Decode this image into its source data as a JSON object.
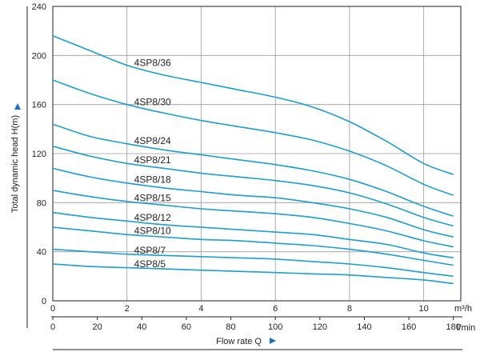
{
  "chart_data": {
    "type": "line",
    "ylabel": "Total dynamic head H(m)",
    "xlabel": "Flow rate  Q",
    "x_unit_top": "m³/h",
    "x_unit_bottom": "l/min",
    "xlim": [
      0,
      11
    ],
    "ylim": [
      0,
      240
    ],
    "x_ticks_top": [
      "0",
      "2",
      "4",
      "6",
      "8",
      "10"
    ],
    "x_ticks_bottom": [
      "0",
      "20",
      "40",
      "60",
      "80",
      "100",
      "120",
      "140",
      "160",
      "180"
    ],
    "y_ticks": [
      "0",
      "40",
      "80",
      "120",
      "160",
      "200",
      "240"
    ],
    "grid": true,
    "curve_color": "#1a9fd0",
    "arrow_color": "#1c6fc2",
    "series": [
      {
        "name": "4SP8/36",
        "x": [
          0,
          1,
          2,
          3,
          4,
          5,
          6,
          7,
          8,
          9,
          10,
          10.8
        ],
        "y": [
          216,
          204,
          192,
          184,
          178,
          172,
          166,
          158,
          146,
          130,
          112,
          103
        ]
      },
      {
        "name": "4SP8/30",
        "x": [
          0,
          1,
          2,
          3,
          4,
          5,
          6,
          7,
          8,
          9,
          10,
          10.8
        ],
        "y": [
          180,
          169,
          160,
          153,
          147,
          142,
          137,
          131,
          122,
          110,
          95,
          86
        ]
      },
      {
        "name": "4SP8/24",
        "x": [
          0,
          1,
          2,
          3,
          4,
          5,
          6,
          7,
          8,
          9,
          10,
          10.8
        ],
        "y": [
          144,
          134,
          128,
          123,
          119,
          115,
          111,
          106,
          99,
          89,
          77,
          69
        ]
      },
      {
        "name": "4SP8/21",
        "x": [
          0,
          1,
          2,
          3,
          4,
          5,
          6,
          7,
          8,
          9,
          10,
          10.8
        ],
        "y": [
          126,
          118,
          112,
          108,
          104,
          101,
          98,
          94,
          88,
          79,
          68,
          61
        ]
      },
      {
        "name": "4SP8/18",
        "x": [
          0,
          1,
          2,
          3,
          4,
          5,
          6,
          7,
          8,
          9,
          10,
          10.8
        ],
        "y": [
          108,
          101,
          96,
          92,
          89,
          86,
          84,
          80,
          75,
          68,
          58,
          52
        ]
      },
      {
        "name": "4SP8/15",
        "x": [
          0,
          1,
          2,
          3,
          4,
          5,
          6,
          7,
          8,
          9,
          10,
          10.8
        ],
        "y": [
          90,
          85,
          81,
          78,
          75,
          73,
          71,
          68,
          63,
          57,
          49,
          44
        ]
      },
      {
        "name": "4SP8/12",
        "x": [
          0,
          1,
          2,
          3,
          4,
          5,
          6,
          7,
          8,
          9,
          10,
          10.8
        ],
        "y": [
          72,
          68,
          65,
          62,
          60,
          58,
          56,
          54,
          50,
          46,
          39,
          35
        ]
      },
      {
        "name": "4SP8/10",
        "x": [
          0,
          1,
          2,
          3,
          4,
          5,
          6,
          7,
          8,
          9,
          10,
          10.8
        ],
        "y": [
          60,
          57,
          54,
          52,
          50,
          49,
          47,
          45,
          42,
          38,
          33,
          29
        ]
      },
      {
        "name": "4SP8/7",
        "x": [
          0,
          1,
          2,
          3,
          4,
          5,
          6,
          7,
          8,
          9,
          10,
          10.8
        ],
        "y": [
          42,
          40,
          38,
          37,
          36,
          35,
          34,
          32,
          30,
          27,
          23,
          20
        ]
      },
      {
        "name": "4SP8/5",
        "x": [
          0,
          1,
          2,
          3,
          4,
          5,
          6,
          7,
          8,
          9,
          10,
          10.8
        ],
        "y": [
          30,
          28,
          27,
          26,
          25,
          24,
          23,
          22,
          21,
          19,
          17,
          14
        ]
      }
    ],
    "curve_labels_x": 2.15
  }
}
